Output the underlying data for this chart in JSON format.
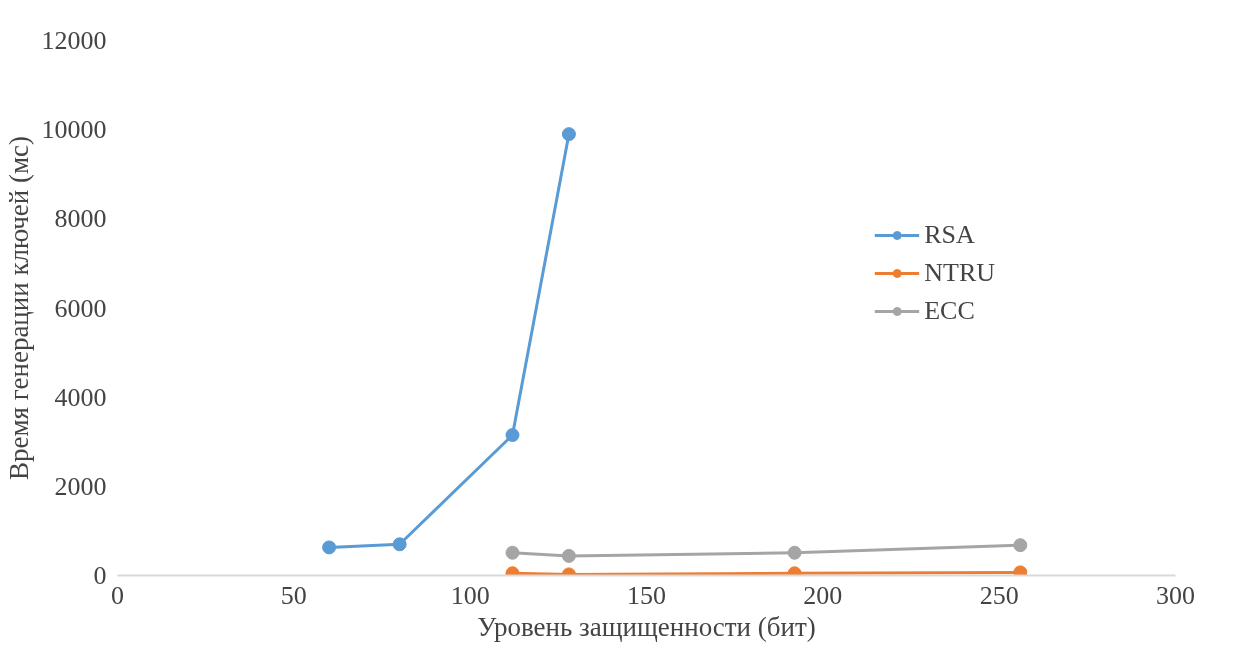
{
  "chart_data": {
    "type": "line",
    "xlabel": "Уровень защищенности (бит)",
    "ylabel": "Время генерации ключей (мс)",
    "xlim": [
      0,
      300
    ],
    "xticks": [
      0,
      50,
      100,
      150,
      200,
      250,
      300
    ],
    "ylim": [
      0,
      12000
    ],
    "yticks": [
      0,
      2000,
      4000,
      6000,
      8000,
      10000,
      12000
    ],
    "grid": false,
    "legend": "top right",
    "marker": "circle",
    "series": [
      {
        "name": "RSA",
        "color": "#5b9bd5",
        "x": [
          60,
          80,
          112,
          128
        ],
        "values": [
          630,
          700,
          3150,
          9900
        ]
      },
      {
        "name": "NTRU",
        "color": "#ed7d31",
        "x": [
          112,
          128,
          192,
          256
        ],
        "values": [
          50,
          25,
          50,
          70
        ]
      },
      {
        "name": "ECC",
        "color": "#a5a5a5",
        "x": [
          112,
          128,
          192,
          256
        ],
        "values": [
          510,
          440,
          510,
          680
        ]
      }
    ]
  }
}
